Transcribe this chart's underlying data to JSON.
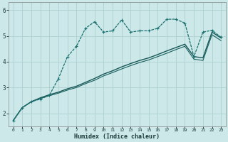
{
  "xlabel": "Humidex (Indice chaleur)",
  "background_color": "#cce8e8",
  "grid_color": "#aed0d0",
  "line_color_dotted": "#1a7070",
  "line_color_solid1": "#1a5858",
  "line_color_solid2": "#1a6060",
  "xlim": [
    -0.5,
    23.5
  ],
  "ylim": [
    1.5,
    6.3
  ],
  "yticks": [
    2,
    3,
    4,
    5,
    6
  ],
  "xticks": [
    0,
    1,
    2,
    3,
    4,
    5,
    6,
    7,
    8,
    9,
    10,
    11,
    12,
    13,
    14,
    15,
    16,
    17,
    18,
    19,
    20,
    21,
    22,
    23
  ],
  "series_dot_x": [
    0,
    1,
    2,
    3,
    4,
    5,
    6,
    7,
    8,
    9,
    10,
    11,
    12,
    13,
    14,
    15,
    16,
    17,
    18,
    19,
    20,
    21,
    22,
    23
  ],
  "series_dot_y": [
    1.72,
    2.22,
    2.45,
    2.55,
    2.7,
    3.35,
    4.2,
    4.6,
    5.3,
    5.55,
    5.15,
    5.2,
    5.62,
    5.15,
    5.2,
    5.2,
    5.3,
    5.65,
    5.65,
    5.5,
    4.2,
    5.15,
    5.22,
    4.95
  ],
  "series_solid1_x": [
    0,
    1,
    2,
    3,
    4,
    5,
    6,
    7,
    8,
    9,
    10,
    11,
    12,
    13,
    14,
    15,
    16,
    17,
    18,
    19,
    20,
    21,
    22,
    23
  ],
  "series_solid1_y": [
    1.72,
    2.22,
    2.45,
    2.6,
    2.72,
    2.82,
    2.95,
    3.05,
    3.2,
    3.35,
    3.52,
    3.65,
    3.8,
    3.93,
    4.05,
    4.15,
    4.28,
    4.42,
    4.55,
    4.68,
    4.2,
    4.15,
    5.15,
    4.92
  ],
  "series_solid2_x": [
    0,
    1,
    2,
    3,
    4,
    5,
    6,
    7,
    8,
    9,
    10,
    11,
    12,
    13,
    14,
    15,
    16,
    17,
    18,
    19,
    20,
    21,
    22,
    23
  ],
  "series_solid2_y": [
    1.72,
    2.22,
    2.45,
    2.58,
    2.68,
    2.78,
    2.9,
    3.0,
    3.15,
    3.28,
    3.45,
    3.58,
    3.72,
    3.85,
    3.97,
    4.07,
    4.2,
    4.33,
    4.47,
    4.6,
    4.1,
    4.05,
    5.05,
    4.82
  ]
}
